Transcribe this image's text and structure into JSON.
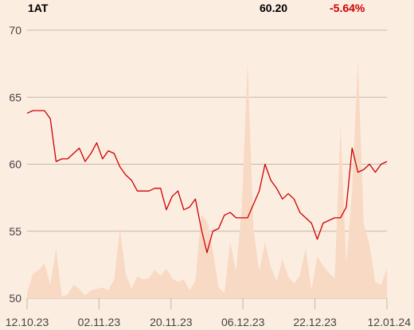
{
  "header": {
    "symbol": "1AT",
    "price": "60.20",
    "change": "-5.64%"
  },
  "colors": {
    "background": "#fcede1",
    "line": "#cc0000",
    "volume_fill": "#f8d9c4",
    "grid": "#c6b6aa",
    "axis_text": "#444444",
    "change_negative": "#cc0000"
  },
  "chart_data": {
    "type": "line",
    "title": "",
    "xlabel": "",
    "ylabel": "",
    "ylim": [
      50,
      70
    ],
    "yticks": [
      50,
      55,
      60,
      65,
      70
    ],
    "grid": true,
    "x_tick_labels": [
      "12.10.23",
      "02.11.23",
      "20.11.23",
      "06.12.23",
      "22.12.23",
      "12.01.24"
    ],
    "series": [
      {
        "values": [
          63.8,
          64.0,
          64.0,
          64.0,
          63.4,
          60.2,
          60.4,
          60.4,
          60.8,
          61.2,
          60.2,
          60.8,
          61.6,
          60.4,
          61.0,
          60.8,
          59.8,
          59.2,
          58.8,
          58.0,
          58.0,
          58.0,
          58.2,
          58.2,
          56.6,
          57.6,
          58.0,
          56.6,
          56.8,
          57.4,
          55.2,
          53.4,
          55.0,
          55.2,
          56.2,
          56.4,
          56.0,
          56.0,
          56.0,
          57.0,
          58.0,
          60.0,
          58.8,
          58.2,
          57.4,
          57.8,
          57.4,
          56.4,
          56.0,
          55.6,
          54.4,
          55.6,
          55.8,
          56.0,
          56.0,
          56.8,
          61.2,
          59.4,
          59.6,
          60.0,
          59.4,
          60.0,
          60.2
        ]
      },
      {
        "type": "area",
        "values": [
          0.4,
          1.8,
          2.1,
          2.6,
          1.0,
          3.7,
          0.1,
          0.3,
          1.0,
          0.7,
          0.2,
          0.6,
          0.7,
          0.8,
          0.6,
          1.4,
          5.2,
          1.8,
          0.7,
          1.6,
          1.4,
          1.5,
          2.1,
          1.7,
          2.2,
          1.5,
          1.2,
          1.4,
          0.6,
          1.3,
          6.2,
          5.8,
          3.6,
          0.8,
          0.4,
          4.2,
          2.0,
          6.8,
          17.6,
          5.2,
          2.0,
          4.2,
          2.3,
          1.3,
          2.9,
          1.6,
          1.1,
          1.7,
          3.7,
          0.6,
          3.1,
          2.4,
          1.9,
          1.5,
          12.8,
          2.6,
          8.0,
          17.8,
          5.6,
          4.0,
          1.2,
          1.0,
          2.2
        ]
      }
    ]
  }
}
